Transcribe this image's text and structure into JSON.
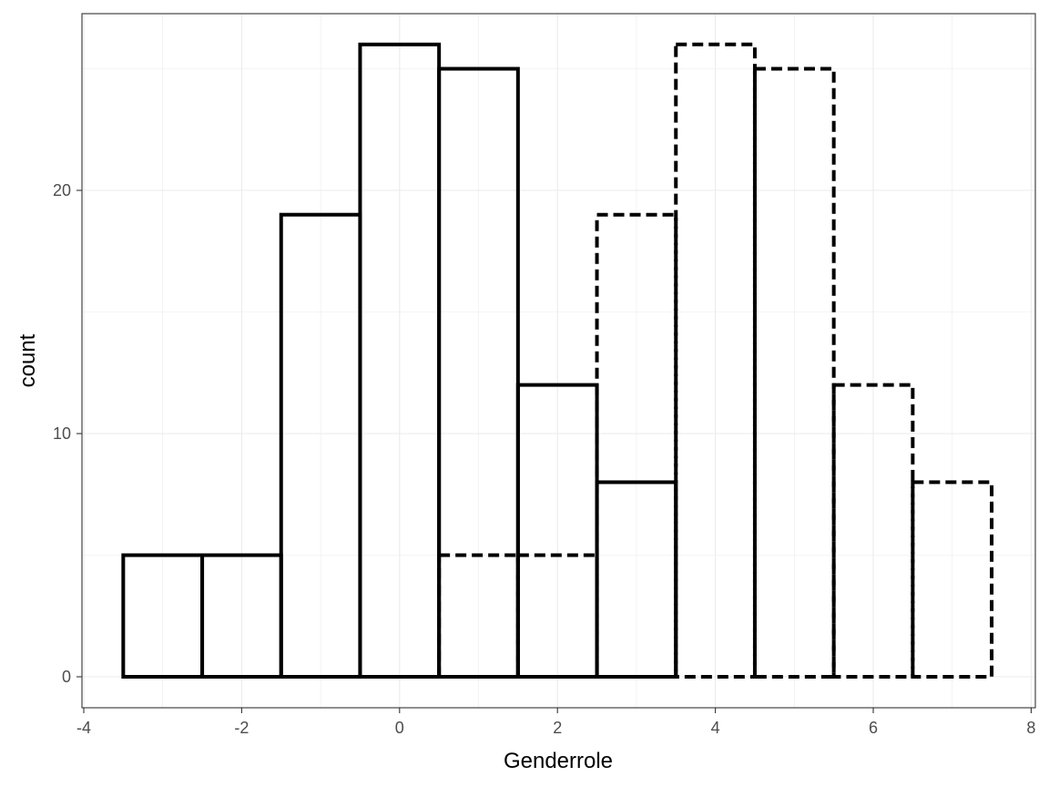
{
  "chart_data": {
    "type": "bar",
    "subtype": "histogram",
    "title": "",
    "xlabel": "Genderrole",
    "ylabel": "count",
    "xlim": [
      -4,
      8
    ],
    "ylim": [
      0,
      26
    ],
    "x_ticks": [
      -4,
      -2,
      0,
      2,
      4,
      6,
      8
    ],
    "x_tick_labels": [
      "-4",
      "-2",
      "0",
      "2",
      "4",
      "6",
      "8"
    ],
    "y_ticks": [
      0,
      10,
      20
    ],
    "y_tick_labels": [
      "0",
      "10",
      "20"
    ],
    "grid": true,
    "legend": "none",
    "bin_width": 1,
    "series": [
      {
        "line_style": "solid",
        "color": "#000000",
        "bin_centers": [
          -3,
          -2,
          -1,
          0,
          1,
          2,
          3
        ],
        "values": [
          5,
          5,
          19,
          26,
          25,
          12,
          8
        ]
      },
      {
        "line_style": "dashed",
        "color": "#000000",
        "bin_centers": [
          1,
          2,
          3,
          4,
          5,
          6,
          7
        ],
        "values": [
          5,
          5,
          19,
          26,
          25,
          12,
          8
        ]
      }
    ]
  }
}
